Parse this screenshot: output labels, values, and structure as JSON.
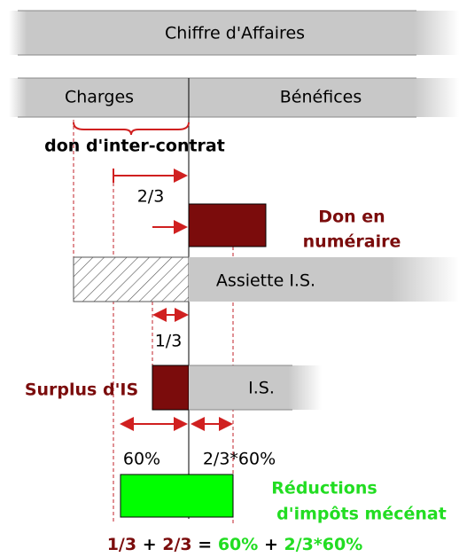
{
  "bars": {
    "top": "Chiffre d'Affaires",
    "left": "Charges",
    "right": "Bénéfices"
  },
  "brace_label": "don d'inter-contrat",
  "fraction_two_thirds": "2/3",
  "don": {
    "line1": "Don en",
    "line2": "numéraire"
  },
  "assiette": "Assiette I.S.",
  "fraction_one_third": "1/3",
  "surplus": "Surplus d'IS",
  "is": "I.S.",
  "pct1": "60%",
  "pct2": "2/3*60%",
  "reductions": {
    "line1": "Réductions",
    "line2": "d'impôts mécénat"
  },
  "formula": [
    "1/3",
    "+",
    "2/3",
    "=",
    "60%",
    "+",
    "2/3*60%"
  ]
}
